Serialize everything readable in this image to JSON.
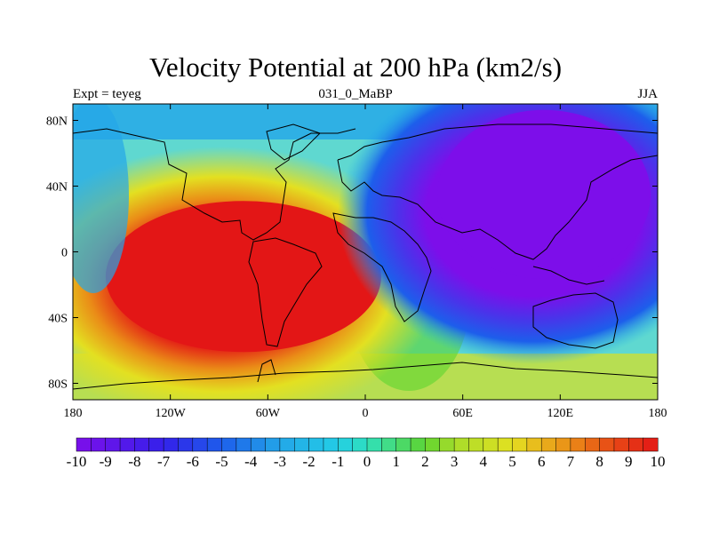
{
  "chart_data": {
    "type": "heatmap",
    "title": "Velocity Potential at 200 hPa (km2/s)",
    "left_string": "Expt = teyeg",
    "center_string": "031_0_MaBP",
    "right_string": "JJA",
    "x_ticks": [
      "180",
      "120W",
      "60W",
      "0",
      "60E",
      "120E",
      "180"
    ],
    "x_values": [
      -180,
      -120,
      -60,
      0,
      60,
      120,
      180
    ],
    "y_ticks": [
      "80N",
      "40N",
      "0",
      "40S",
      "80S"
    ],
    "y_values": [
      80,
      40,
      0,
      -40,
      -80
    ],
    "xlim": [
      -180,
      180
    ],
    "ylim": [
      -90,
      90
    ],
    "colorbar_labels": [
      "-10",
      "-9",
      "-8",
      "-7",
      "-6",
      "-5",
      "-4",
      "-3",
      "-2",
      "-1",
      "0",
      "1",
      "2",
      "3",
      "4",
      "5",
      "6",
      "7",
      "8",
      "9",
      "10"
    ],
    "colorbar_values": [
      -10,
      -9,
      -8,
      -7,
      -6,
      -5,
      -4,
      -3,
      -2,
      -1,
      0,
      1,
      2,
      3,
      4,
      5,
      6,
      7,
      8,
      9,
      10
    ],
    "field_centers": [
      {
        "label": "maximum",
        "lon": -75,
        "lat": -15,
        "value": 10
      },
      {
        "label": "minimum",
        "lon": 110,
        "lat": 35,
        "value": -10
      }
    ],
    "colors": {
      "min": "#7d0eea",
      "blue": "#1d5eeb",
      "cyan": "#23b6e8",
      "zero": "#2fe0bd",
      "green": "#5ed530",
      "yellow": "#e3e021",
      "orange": "#ea8d17",
      "max": "#e31616"
    }
  }
}
